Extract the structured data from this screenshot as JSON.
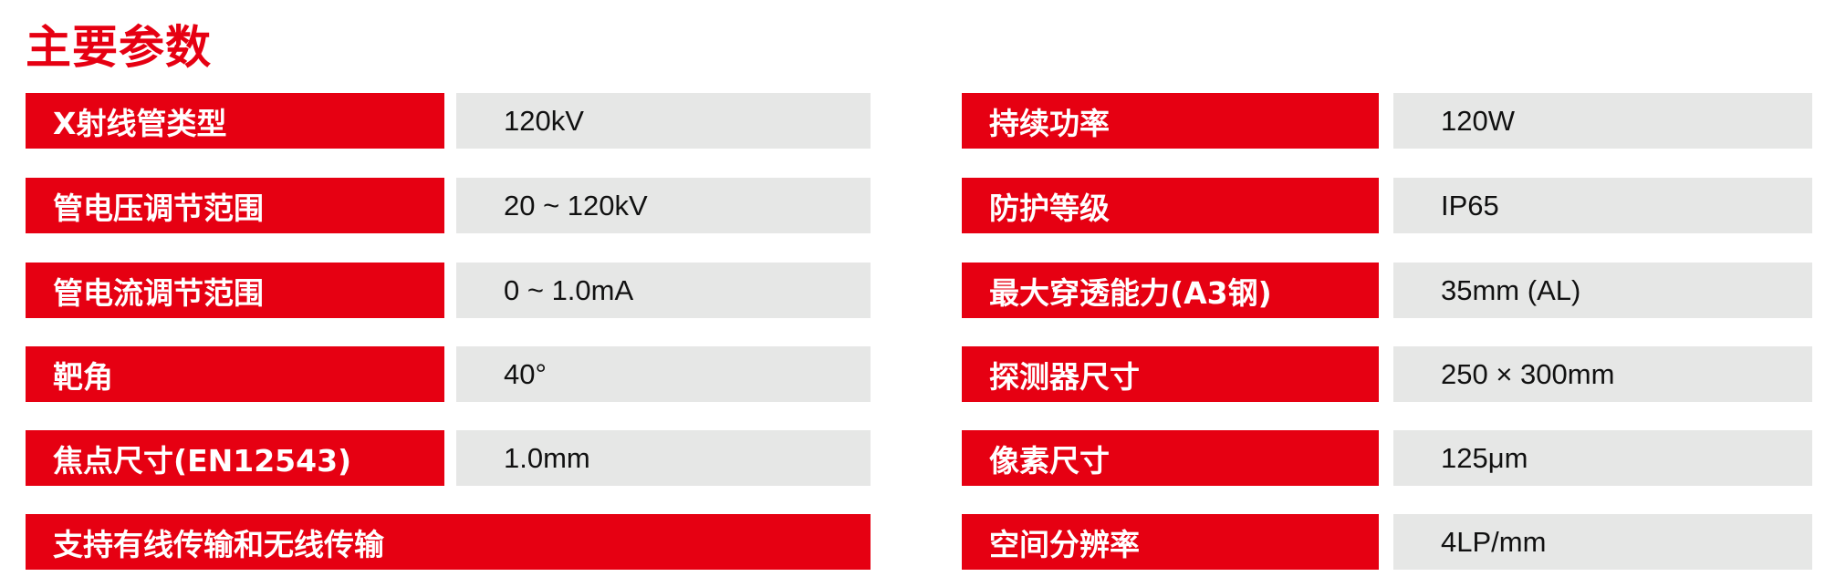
{
  "title": "主要参数",
  "colors": {
    "accent": "#e60012",
    "value_bg": "#e6e7e6"
  },
  "left": [
    {
      "label": "X射线管类型",
      "value": "120kV"
    },
    {
      "label": "管电压调节范围",
      "value": "20 ~ 120kV"
    },
    {
      "label": "管电流调节范围",
      "value": "0 ~ 1.0mA"
    },
    {
      "label": "靶角",
      "value": "40°"
    },
    {
      "label": "焦点尺寸(EN12543)",
      "value": "1.0mm"
    },
    {
      "label": "支持有线传输和无线传输"
    }
  ],
  "right": [
    {
      "label": "持续功率",
      "value": "120W"
    },
    {
      "label": "防护等级",
      "value": "IP65"
    },
    {
      "label": "最大穿透能力(A3钢)",
      "value": "35mm (AL)"
    },
    {
      "label": "探测器尺寸",
      "value": "250 × 300mm"
    },
    {
      "label": "像素尺寸",
      "value": "125μm"
    },
    {
      "label": "空间分辨率",
      "value": "4LP/mm"
    }
  ]
}
